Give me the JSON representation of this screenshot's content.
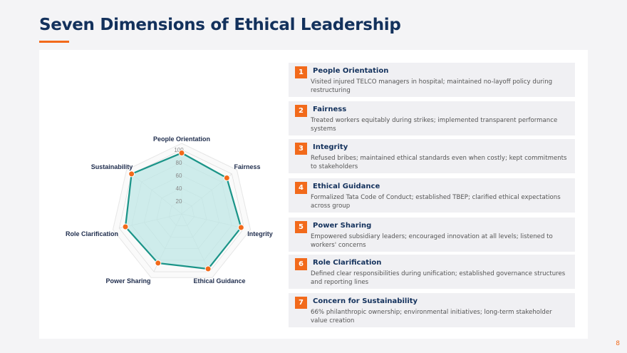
{
  "title": "Seven Dimensions of Ethical Leadership",
  "page_number": "8",
  "colors": {
    "accent": "#f26a1b",
    "title": "#13315c",
    "series_line": "#1a9488",
    "series_fill": "#bfe7e6"
  },
  "chart_data": {
    "type": "radar",
    "categories": [
      "People Orientation",
      "Fairness",
      "Integrity",
      "Ethical Guidance",
      "Power Sharing",
      "Role Clarification",
      "Sustainability"
    ],
    "values": [
      95,
      90,
      95,
      95,
      85,
      90,
      100
    ],
    "rlim": [
      0,
      100
    ],
    "ticks": [
      "20",
      "40",
      "60",
      "80",
      "100"
    ],
    "grid": true
  },
  "items": [
    {
      "num": "1",
      "title": "People Orientation",
      "desc": "Visited injured TELCO managers in hospital; maintained no-layoff policy during restructuring"
    },
    {
      "num": "2",
      "title": "Fairness",
      "desc": "Treated workers equitably during strikes; implemented transparent performance systems"
    },
    {
      "num": "3",
      "title": "Integrity",
      "desc": "Refused bribes; maintained ethical standards even when costly; kept commitments to stakeholders"
    },
    {
      "num": "4",
      "title": "Ethical Guidance",
      "desc": "Formalized Tata Code of Conduct; established TBEP; clarified ethical expectations across group"
    },
    {
      "num": "5",
      "title": "Power Sharing",
      "desc": "Empowered subsidiary leaders; encouraged innovation at all levels; listened to workers' concerns"
    },
    {
      "num": "6",
      "title": "Role Clarification",
      "desc": "Defined clear responsibilities during unification; established governance structures and reporting lines"
    },
    {
      "num": "7",
      "title": "Concern for Sustainability",
      "desc": "66% philanthropic ownership; environmental initiatives; long-term stakeholder value creation"
    }
  ]
}
